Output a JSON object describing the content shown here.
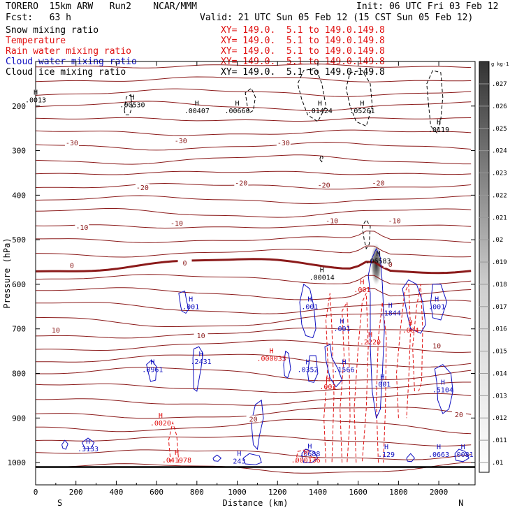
{
  "header": {
    "model": "TORERO  15km ARW   Run2    NCAR/MMM",
    "fcst": "Fcst:   63 h",
    "init": "Init: 06 UTC Fri 03 Feb 12",
    "valid": "Valid: 21 UTC Sun 05 Feb 12 (15 CST Sun 05 Feb 12)"
  },
  "legend": [
    {
      "label": "Snow mixing ratio",
      "color": "#000000",
      "xy": ""
    },
    {
      "label": "Temperature",
      "color": "#e01010",
      "xy": "XY= 149.0.  5.1 to 149.0.149.8"
    },
    {
      "label": "Rain water mixing ratio",
      "color": "#e01010",
      "xy": "XY= 149.0.  5.1 to 149.0.149.8"
    },
    {
      "label": "Cloud water mixing ratio",
      "color": "#1010c0",
      "xy": "XY= 149.0.  5.1 to 149.0.149.8"
    },
    {
      "label": "Cloud ice mixing ratio",
      "color": "#000000",
      "xy": "XY= 149.0.  5.1 to 149.0.149.8"
    }
  ],
  "first_xy": "XY= 149.0.  5.1 to 149.0.149.8",
  "chart_data": {
    "type": "contour",
    "xlabel": "Distance (km)",
    "ylabel": "Pressure (hPa)",
    "xlim": [
      0,
      2180
    ],
    "ylim": [
      1050,
      100
    ],
    "x_ticks": [
      "0",
      "200",
      "400",
      "600",
      "800",
      "1000",
      "1200",
      "1400",
      "1600",
      "1800",
      "2000"
    ],
    "y_ticks": [
      "200",
      "300",
      "400",
      "500",
      "600",
      "700",
      "800",
      "900",
      "1000"
    ],
    "x_end_labels": {
      "left": "S",
      "right": "N"
    },
    "colorbar": {
      "units": "g kg-1",
      "labels": [
        ".01",
        ".011",
        ".012",
        ".013",
        ".014",
        ".015",
        ".016",
        ".017",
        ".018",
        ".019",
        ".02",
        ".021",
        ".022",
        ".023",
        ".024",
        ".025",
        ".026",
        ".027"
      ]
    },
    "temperature_labels": [
      {
        "x": 180,
        "p": 285,
        "text": "-30"
      },
      {
        "x": 720,
        "p": 280,
        "text": "-30"
      },
      {
        "x": 1230,
        "p": 285,
        "text": "-30"
      },
      {
        "x": 530,
        "p": 385,
        "text": "-20"
      },
      {
        "x": 1020,
        "p": 375,
        "text": "-20"
      },
      {
        "x": 1430,
        "p": 380,
        "text": "-20"
      },
      {
        "x": 1700,
        "p": 375,
        "text": "-20"
      },
      {
        "x": 230,
        "p": 475,
        "text": "-10"
      },
      {
        "x": 700,
        "p": 465,
        "text": "-10"
      },
      {
        "x": 1470,
        "p": 460,
        "text": "-10"
      },
      {
        "x": 1780,
        "p": 460,
        "text": "-10"
      },
      {
        "x": 180,
        "p": 560,
        "text": "0"
      },
      {
        "x": 740,
        "p": 555,
        "text": "0"
      },
      {
        "x": 1760,
        "p": 558,
        "text": "0"
      },
      {
        "x": 100,
        "p": 705,
        "text": "10"
      },
      {
        "x": 820,
        "p": 718,
        "text": "10"
      },
      {
        "x": 1990,
        "p": 740,
        "text": "10"
      },
      {
        "x": 1080,
        "p": 905,
        "text": "20"
      },
      {
        "x": 2100,
        "p": 895,
        "text": "20"
      }
    ],
    "ice_maxima": [
      {
        "x": 0,
        "p": 192,
        "text": ".0013"
      },
      {
        "x": 480,
        "p": 203,
        "text": ".00530"
      },
      {
        "x": 800,
        "p": 216,
        "text": ".00407"
      },
      {
        "x": 1000,
        "p": 216,
        "text": ".00660"
      },
      {
        "x": 1410,
        "p": 216,
        "text": ".01424"
      },
      {
        "x": 1620,
        "p": 216,
        "text": ".05261"
      },
      {
        "x": 2000,
        "p": 258,
        "text": ".0119"
      },
      {
        "x": 1420,
        "p": 590,
        "text": ".00014"
      }
    ],
    "snow_maxima": [
      {
        "x": 1700,
        "p": 553,
        "text": ".06583"
      }
    ],
    "cloud_water_maxima": [
      {
        "x": 770,
        "p": 656,
        "text": ".001"
      },
      {
        "x": 1360,
        "p": 656,
        "text": ".001"
      },
      {
        "x": 1520,
        "p": 705,
        "text": ".001"
      },
      {
        "x": 1760,
        "p": 670,
        "text": ".1844"
      },
      {
        "x": 1990,
        "p": 656,
        "text": ".001"
      },
      {
        "x": 820,
        "p": 779,
        "text": ".2431"
      },
      {
        "x": 580,
        "p": 797,
        "text": ".0961"
      },
      {
        "x": 1350,
        "p": 797,
        "text": ".0352"
      },
      {
        "x": 1530,
        "p": 797,
        "text": ".1566"
      },
      {
        "x": 1720,
        "p": 830,
        "text": ".001"
      },
      {
        "x": 2020,
        "p": 842,
        "text": ".5104"
      },
      {
        "x": 260,
        "p": 975,
        "text": ".3133"
      },
      {
        "x": 1010,
        "p": 1002,
        "text": "243"
      },
      {
        "x": 1360,
        "p": 986,
        "text": ".0688"
      },
      {
        "x": 1740,
        "p": 987,
        "text": ".129"
      },
      {
        "x": 2000,
        "p": 987,
        "text": ".0663"
      },
      {
        "x": 2120,
        "p": 987,
        "text": ".0081"
      }
    ],
    "rain_maxima": [
      {
        "x": 1170,
        "p": 772,
        "text": ".000033"
      },
      {
        "x": 1620,
        "p": 617,
        "text": ".001"
      },
      {
        "x": 1660,
        "p": 735,
        "text": ".2220"
      },
      {
        "x": 1860,
        "p": 708,
        "text": ".004"
      },
      {
        "x": 620,
        "p": 917,
        "text": ".0020"
      },
      {
        "x": 700,
        "p": 1000,
        "text": ".041978"
      },
      {
        "x": 1340,
        "p": 1000,
        "text": ".000136"
      },
      {
        "x": 1450,
        "p": 835,
        "text": ".001"
      }
    ]
  }
}
